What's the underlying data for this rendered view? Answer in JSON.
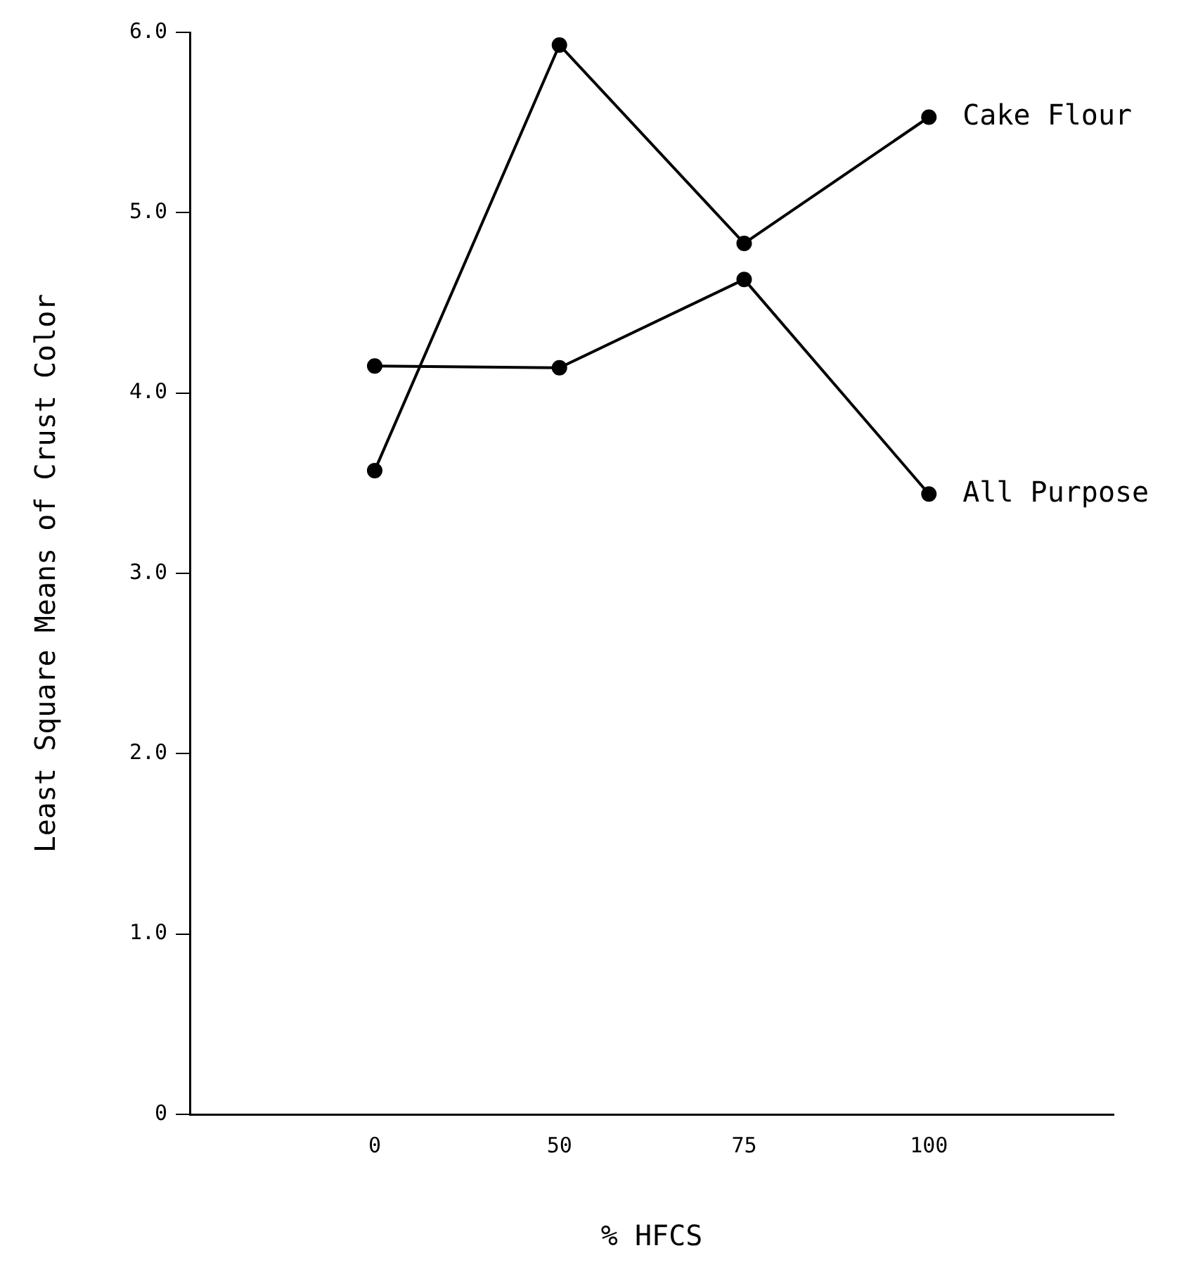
{
  "chart_data": {
    "type": "line",
    "xlabel": "% HFCS",
    "ylabel": "Least Square Means of Crust Color",
    "categories": [
      "0",
      "50",
      "75",
      "100"
    ],
    "series": [
      {
        "name": "Cake Flour",
        "color": "#000000",
        "values": [
          3.57,
          5.93,
          4.83,
          5.53
        ]
      },
      {
        "name": "All Purpose",
        "color": "#000000",
        "values": [
          4.15,
          4.14,
          4.63,
          3.44
        ]
      }
    ],
    "ylim": [
      0,
      6
    ],
    "yticks": [
      {
        "value": 0,
        "label": "0"
      },
      {
        "value": 1,
        "label": "1.0"
      },
      {
        "value": 2,
        "label": "2.0"
      },
      {
        "value": 3,
        "label": "3.0"
      },
      {
        "value": 4,
        "label": "4.0"
      },
      {
        "value": 5,
        "label": "5.0"
      },
      {
        "value": 6,
        "label": "6.0"
      }
    ],
    "grid": false,
    "legend": false,
    "marker": "circle",
    "line_style": "solid"
  }
}
